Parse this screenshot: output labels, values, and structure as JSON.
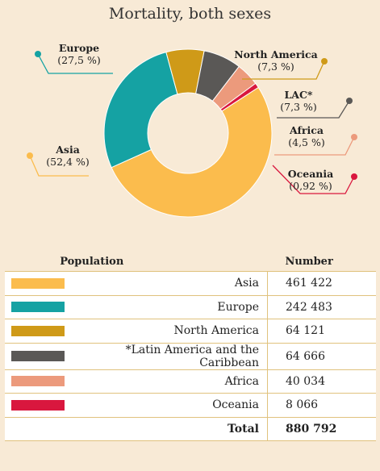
{
  "chart_data": {
    "type": "pie",
    "donut": true,
    "title": "Mortality, both sexes",
    "slices": [
      {
        "name": "Asia",
        "label": "Asia",
        "percent_label": "(52,4 %)",
        "value": 52.4,
        "color": "#fbbc4d"
      },
      {
        "name": "Europe",
        "label": "Europe",
        "percent_label": "(27,5 %)",
        "value": 27.5,
        "color": "#15a2a3"
      },
      {
        "name": "North America",
        "label": "North America",
        "percent_label": "(7,3 %)",
        "value": 7.3,
        "color": "#cf9a18"
      },
      {
        "name": "LAC",
        "label": "LAC*",
        "percent_label": "(7,3 %)",
        "value": 7.3,
        "color": "#5a5856"
      },
      {
        "name": "Africa",
        "label": "Africa",
        "percent_label": "(4,5 %)",
        "value": 4.5,
        "color": "#ec9a7c"
      },
      {
        "name": "Oceania",
        "label": "Oceania",
        "percent_label": "(0,92 %)",
        "value": 0.92,
        "color": "#d9173e"
      }
    ]
  },
  "table": {
    "headers": {
      "population": "Population",
      "number": "Number"
    },
    "rows": [
      {
        "population": "Asia",
        "number": "461 422",
        "color": "#fbbc4d"
      },
      {
        "population": "Europe",
        "number": "242 483",
        "color": "#15a2a3"
      },
      {
        "population": "North America",
        "number": "64 121",
        "color": "#cf9a18"
      },
      {
        "population": "*Latin America and the Caribbean",
        "number": "64 666",
        "color": "#5a5856"
      },
      {
        "population": "Africa",
        "number": "40 034",
        "color": "#ec9a7c"
      },
      {
        "population": "Oceania",
        "number": "8 066",
        "color": "#d9173e"
      }
    ],
    "total": {
      "label": "Total",
      "number": "880 792"
    }
  }
}
